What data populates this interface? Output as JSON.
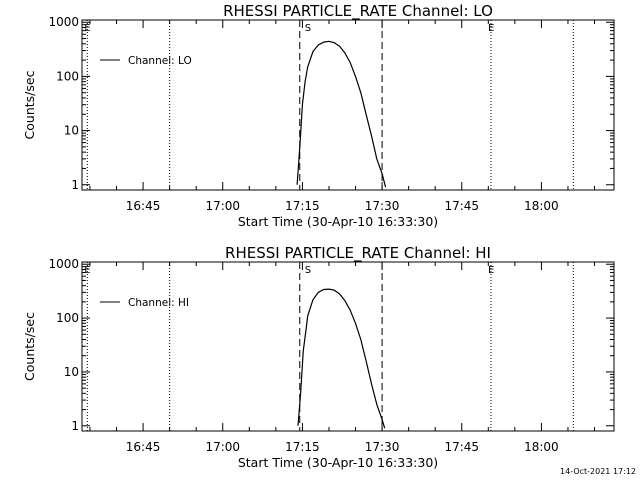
{
  "footer_timestamp": "14-Oct-2021 17:12",
  "colors": {
    "background": "#ffffff",
    "ink": "#000000"
  },
  "chart_data": [
    {
      "type": "line",
      "title": "RHESSI PARTICLE_RATE Channel: LO",
      "xlabel": "Start Time (30-Apr-10 16:33:30)",
      "ylabel": "Counts/sec",
      "yscale": "log",
      "xlim": [
        "16:33:30",
        "18:13:40"
      ],
      "ylim": [
        0.8,
        1100
      ],
      "x_ticks": [
        "16:45",
        "17:00",
        "17:15",
        "17:30",
        "17:45",
        "18:00"
      ],
      "y_ticks": [
        {
          "value": 1,
          "label": "1"
        },
        {
          "value": 10,
          "label": "10"
        },
        {
          "value": 100,
          "label": "100"
        },
        {
          "value": 1000,
          "label": "1000"
        }
      ],
      "legend": {
        "placement": "top-left",
        "entries": [
          "Channel: LO"
        ]
      },
      "markers": [
        {
          "time": "16:34:30",
          "style": "dotted",
          "label": "E"
        },
        {
          "time": "16:50:00",
          "style": "dotted",
          "label": ""
        },
        {
          "time": "17:14:30",
          "style": "dashed",
          "label": ""
        },
        {
          "time": "17:16:00",
          "style": "none",
          "label": "S"
        },
        {
          "time": "17:30:00",
          "style": "dashed",
          "label": ""
        },
        {
          "time": "17:50:30",
          "style": "dotted",
          "label": "E"
        },
        {
          "time": "18:06:00",
          "style": "dotted",
          "label": ""
        }
      ],
      "series": [
        {
          "name": "Channel: LO",
          "x": [
            "17:14:00",
            "17:14:30",
            "17:15:00",
            "17:15:30",
            "17:16:00",
            "17:17:00",
            "17:18:00",
            "17:19:00",
            "17:20:00",
            "17:21:00",
            "17:22:00",
            "17:23:00",
            "17:24:00",
            "17:25:00",
            "17:26:00",
            "17:27:00",
            "17:28:00",
            "17:29:00",
            "17:30:00",
            "17:30:40"
          ],
          "y": [
            1,
            5,
            30,
            80,
            150,
            290,
            380,
            430,
            445,
            420,
            360,
            270,
            180,
            100,
            50,
            20,
            8,
            3,
            1.6,
            0.9
          ]
        }
      ]
    },
    {
      "type": "line",
      "title": "RHESSI PARTICLE_RATE Channel: HI",
      "xlabel": "Start Time (30-Apr-10 16:33:30)",
      "ylabel": "Counts/sec",
      "yscale": "log",
      "xlim": [
        "16:33:30",
        "18:13:40"
      ],
      "ylim": [
        0.8,
        1100
      ],
      "x_ticks": [
        "16:45",
        "17:00",
        "17:15",
        "17:30",
        "17:45",
        "18:00"
      ],
      "y_ticks": [
        {
          "value": 1,
          "label": "1"
        },
        {
          "value": 10,
          "label": "10"
        },
        {
          "value": 100,
          "label": "100"
        },
        {
          "value": 1000,
          "label": "1000"
        }
      ],
      "legend": {
        "placement": "top-left",
        "entries": [
          "Channel: HI"
        ]
      },
      "markers": [
        {
          "time": "16:34:30",
          "style": "dotted",
          "label": "E"
        },
        {
          "time": "16:50:00",
          "style": "dotted",
          "label": ""
        },
        {
          "time": "17:14:30",
          "style": "dashed",
          "label": ""
        },
        {
          "time": "17:16:00",
          "style": "none",
          "label": "S"
        },
        {
          "time": "17:30:00",
          "style": "dashed",
          "label": ""
        },
        {
          "time": "17:50:30",
          "style": "dotted",
          "label": "E"
        },
        {
          "time": "18:06:00",
          "style": "dotted",
          "label": ""
        }
      ],
      "series": [
        {
          "name": "Channel: HI",
          "x": [
            "17:14:10",
            "17:14:40",
            "17:15:10",
            "17:15:40",
            "17:16:00",
            "17:17:00",
            "17:18:00",
            "17:19:00",
            "17:20:00",
            "17:21:00",
            "17:22:00",
            "17:23:00",
            "17:24:00",
            "17:25:00",
            "17:26:00",
            "17:27:00",
            "17:28:00",
            "17:29:00",
            "17:30:00",
            "17:30:30"
          ],
          "y": [
            1,
            4,
            25,
            60,
            110,
            220,
            300,
            340,
            345,
            330,
            280,
            210,
            140,
            80,
            40,
            16,
            6,
            2.5,
            1.3,
            0.9
          ]
        }
      ]
    }
  ]
}
